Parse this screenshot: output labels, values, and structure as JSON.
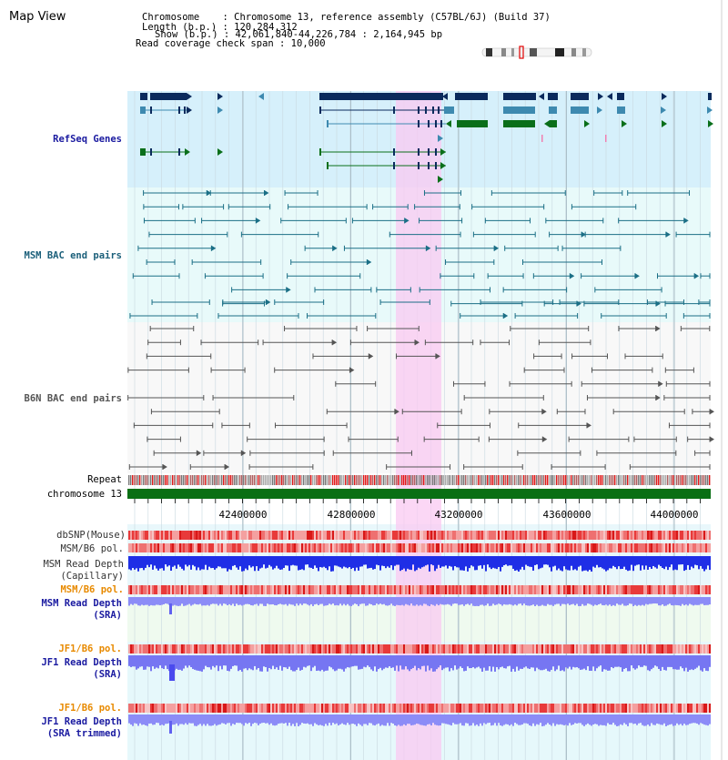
{
  "header": {
    "title": "Map View",
    "chromosome_line": "Chromosome    : Chromosome 13, reference assembly (C57BL/6J) (Build 37)",
    "length_line": "Length (b.p.) : 120,284,312",
    "show_line": "Show (b.p.) : 42,061,840-44,226,784 : 2,164,945 bp",
    "coverage_line": "Read coverage check span : 10,000"
  },
  "tracks": {
    "refseq": "RefSeq Genes",
    "msm_bac": "MSM BAC end pairs",
    "b6n_bac": "B6N BAC end pairs",
    "repeat": "Repeat",
    "chromosome": "chromosome 13",
    "dbsnp": "dbSNP(Mouse)",
    "msm_pol_1": "MSM/B6 pol.",
    "msm_depth_cap_1": "MSM Read Depth",
    "msm_depth_cap_2": "(Capillary)",
    "msm_pol_2": "MSM/B6 pol.",
    "msm_depth_sra_1": "MSM Read Depth",
    "msm_depth_sra_2": "(SRA)",
    "jf1_pol_1": "JF1/B6 pol.",
    "jf1_depth_sra_1": "JF1 Read Depth",
    "jf1_depth_sra_2": "(SRA)",
    "jf1_pol_2": "JF1/B6 pol.",
    "jf1_depth_trim_1": "JF1 Read Depth",
    "jf1_depth_trim_2": "(SRA trimmed)"
  },
  "ruler": {
    "ticks": [
      "42400000",
      "42800000",
      "43200000",
      "43600000",
      "44000000"
    ]
  },
  "colors": {
    "refseq_bg": "#d6f0fb",
    "bac_bg": "#e8fafa",
    "selection": "#f9d6f3",
    "gene_dark": "#0b2a5c",
    "gene_mid": "#3e8ab0",
    "gene_green": "#0a6f1a",
    "chromosome_bar": "#0a6f14",
    "label_blue": "#1a1aa0",
    "label_orange": "#e88a00",
    "depth_blue": "#1f2ee6",
    "depth_lavender": "#8c8cf7"
  }
}
